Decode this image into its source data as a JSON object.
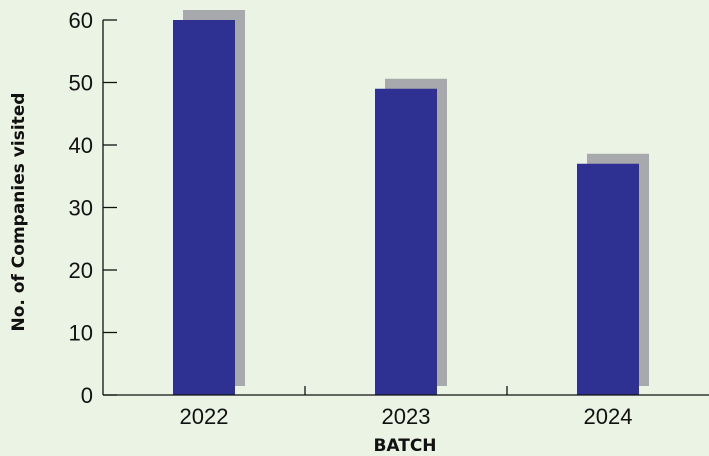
{
  "chart_data": {
    "type": "bar",
    "categories": [
      "2022",
      "2023",
      "2024"
    ],
    "values": [
      60,
      49,
      37
    ],
    "xlabel": "BATCH",
    "ylabel": "No. of Companies visited",
    "ylim": [
      0,
      60
    ],
    "yticks": [
      "0",
      "10",
      "20",
      "30",
      "40",
      "50",
      "60"
    ],
    "grid": false,
    "legend": "none",
    "colors": {
      "bar": "#2e3192",
      "shadow": "#a7a9ac",
      "axis": "#111111",
      "background": "#ebf4e4"
    }
  }
}
